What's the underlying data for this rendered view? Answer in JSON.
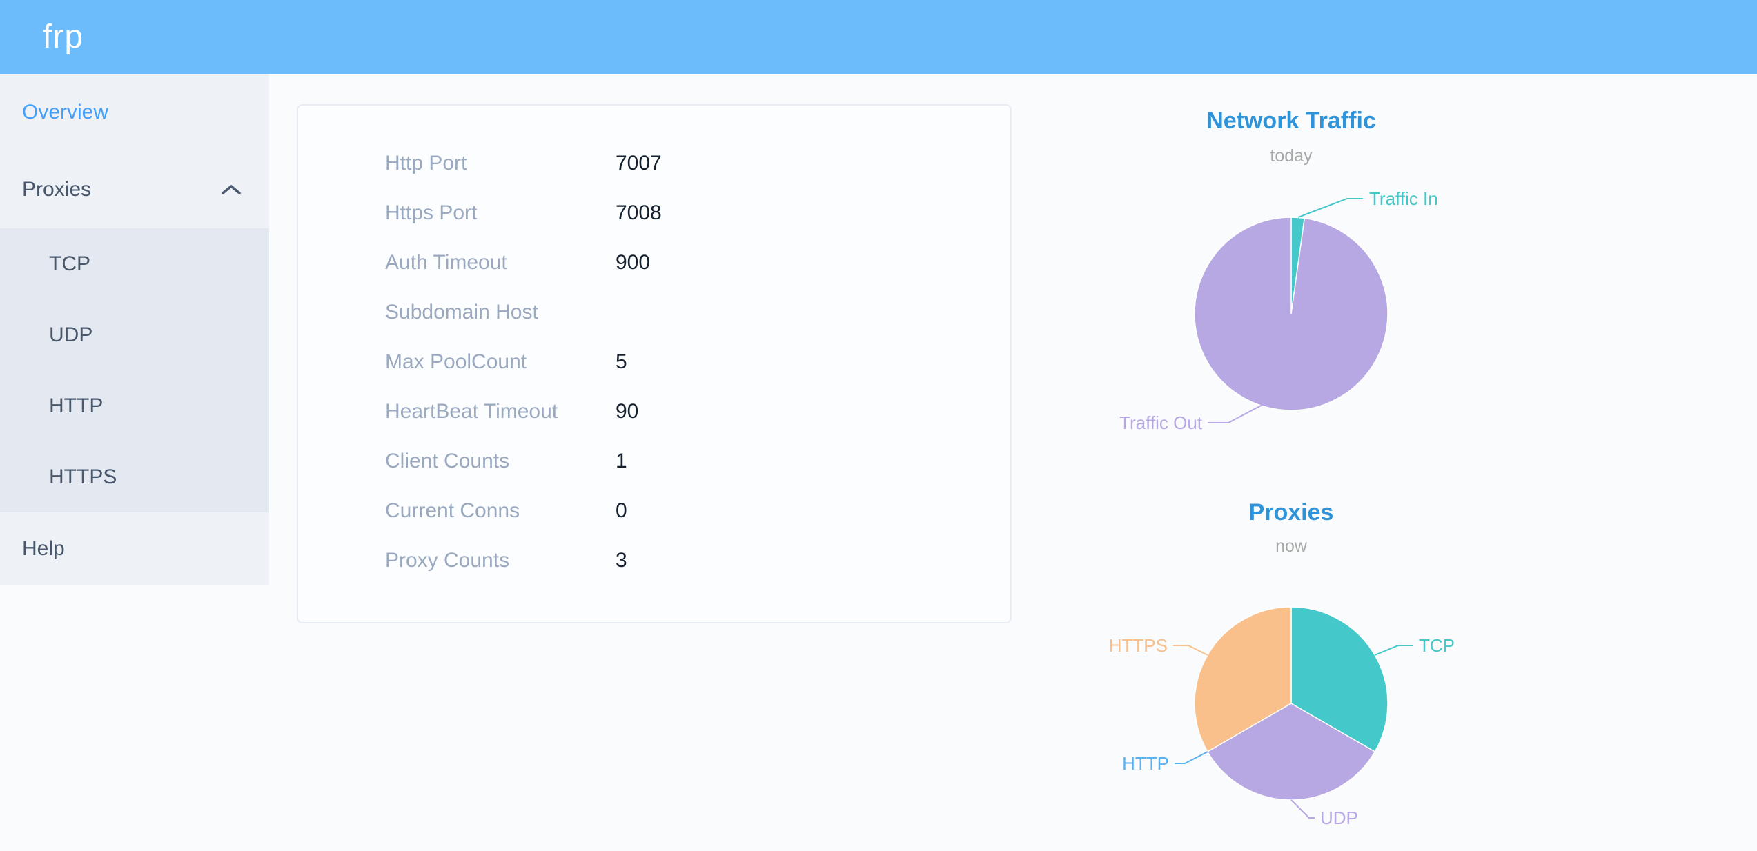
{
  "header": {
    "logo": "frp"
  },
  "sidebar": {
    "overview": "Overview",
    "proxies": "Proxies",
    "submenu": [
      "TCP",
      "UDP",
      "HTTP",
      "HTTPS"
    ],
    "help": "Help"
  },
  "server_config": {
    "rows": [
      {
        "label": "Http Port",
        "value": "7007"
      },
      {
        "label": "Https Port",
        "value": "7008"
      },
      {
        "label": "Auth Timeout",
        "value": "900"
      },
      {
        "label": "Subdomain Host",
        "value": ""
      },
      {
        "label": "Max PoolCount",
        "value": "5"
      },
      {
        "label": "HeartBeat Timeout",
        "value": "90"
      },
      {
        "label": "Client Counts",
        "value": "1"
      },
      {
        "label": "Current Conns",
        "value": "0"
      },
      {
        "label": "Proxy Counts",
        "value": "3"
      }
    ]
  },
  "colors": {
    "header_bg": "#6cbcfb",
    "sidebar_bg": "#eef1f6",
    "submenu_bg": "#e4e8f1",
    "sidebar_text": "#48576a",
    "active_link": "#42a0fc",
    "config_label": "#9aa9bf",
    "chart_title_blue": "#2e93d8",
    "chart_subtitle_gray": "#a8a8a8",
    "teal": "#45c8c9",
    "purple": "#b7a8e4",
    "http_blue": "#5ab1ef",
    "orange": "#f9c08c"
  },
  "chart_data": [
    {
      "type": "pie",
      "title": "Network Traffic",
      "subtitle": "today",
      "labels": [
        "Traffic In",
        "Traffic Out"
      ],
      "values_percent": [
        2.2,
        97.8
      ],
      "colors": [
        "#45c8c9",
        "#b7a8e4"
      ],
      "labels_outside": true,
      "legend_position": "none"
    },
    {
      "type": "pie",
      "title": "Proxies",
      "subtitle": "now",
      "labels": [
        "TCP",
        "UDP",
        "HTTP",
        "HTTPS"
      ],
      "values": [
        1,
        1,
        0,
        1
      ],
      "colors": [
        "#45c8c9",
        "#b7a8e4",
        "#5ab1ef",
        "#f9c08c"
      ],
      "labels_outside": true,
      "legend_position": "none"
    }
  ]
}
